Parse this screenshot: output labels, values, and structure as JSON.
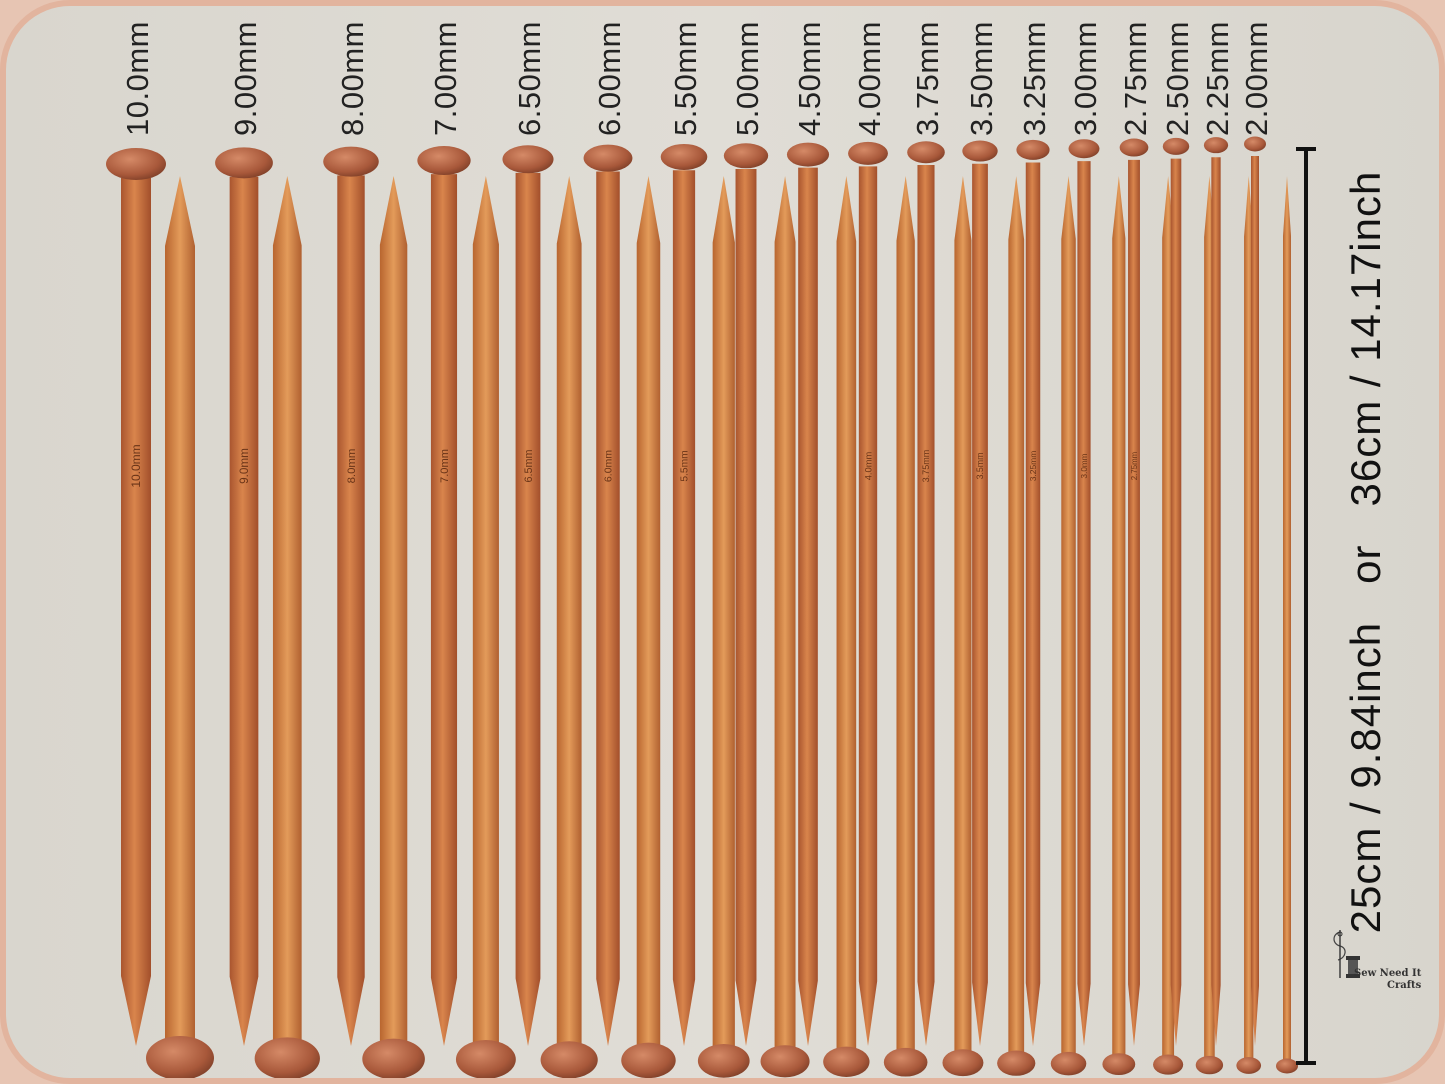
{
  "needles": [
    {
      "label": "10.0mm",
      "engraving": "10.0mm"
    },
    {
      "label": "9.00mm",
      "engraving": "9.0mm"
    },
    {
      "label": "8.00mm",
      "engraving": "8.0mm"
    },
    {
      "label": "7.00mm",
      "engraving": "7.0mm"
    },
    {
      "label": "6.50mm",
      "engraving": "6.5mm"
    },
    {
      "label": "6.00mm",
      "engraving": "6.0mm"
    },
    {
      "label": "5.50mm",
      "engraving": "5.5mm"
    },
    {
      "label": "5.00mm",
      "engraving": ""
    },
    {
      "label": "4.50mm",
      "engraving": ""
    },
    {
      "label": "4.00mm",
      "engraving": "4.0mm"
    },
    {
      "label": "3.75mm",
      "engraving": "3.75mm"
    },
    {
      "label": "3.50mm",
      "engraving": "3.5mm"
    },
    {
      "label": "3.25mm",
      "engraving": "3.25mm"
    },
    {
      "label": "3.00mm",
      "engraving": "3.0mm"
    },
    {
      "label": "2.75mm",
      "engraving": "2.75mm"
    },
    {
      "label": "2.50mm",
      "engraving": ""
    },
    {
      "label": "2.25mm",
      "engraving": ""
    },
    {
      "label": "2.00mm",
      "engraving": ""
    }
  ],
  "length_text": "25cm / 9.84inch   or   36cm / 14.17inch",
  "brand": {
    "line1": "Sew Need It",
    "line2": "Crafts",
    "icon": "needle-thread-spool-icon"
  },
  "colors": {
    "background": "#dcd9d1",
    "border": "#e2b49e",
    "wood_dark": "#b7623c",
    "wood_light": "#d38a4e"
  }
}
